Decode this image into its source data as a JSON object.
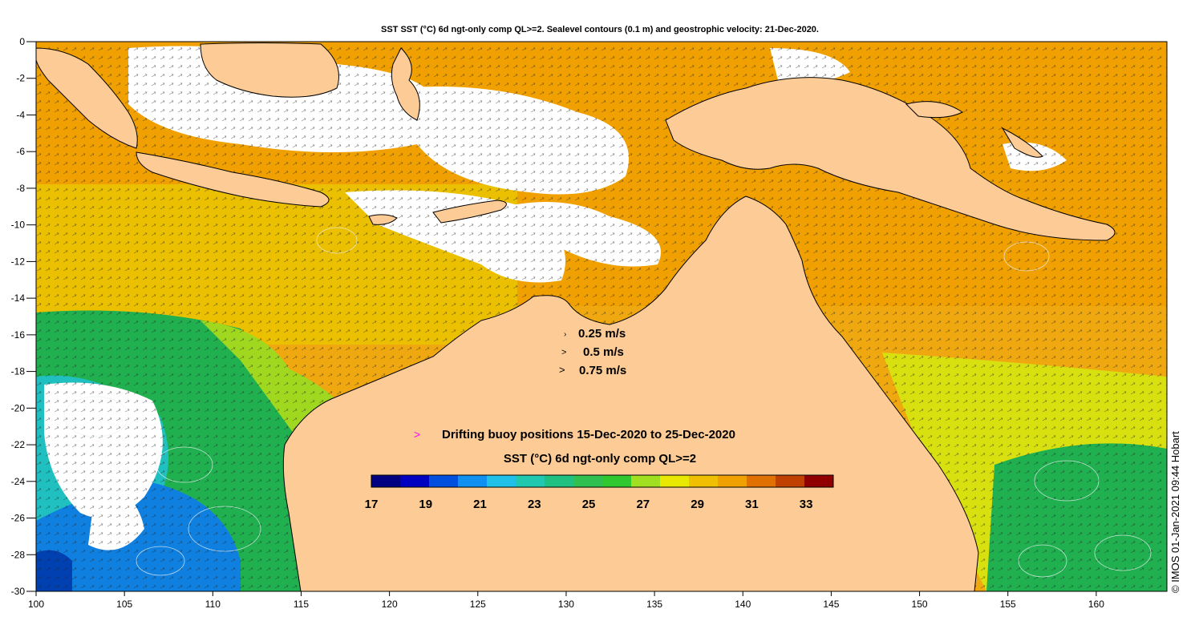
{
  "title": "SST SST (°C) 6d ngt-only comp QL>=2. Sealevel contours (0.1 m) and geostrophic velocity: 21-Dec-2020.",
  "colors": {
    "land": "#fdcb95",
    "cloud": "#ffffff",
    "frame": "#000000",
    "buoy_marker": "#ff00ff",
    "contour": "#e8f0f0"
  },
  "velocity_legend": [
    {
      "label": "0.25 m/s"
    },
    {
      "label": "0.5 m/s"
    },
    {
      "label": "0.75 m/s"
    }
  ],
  "buoy_legend": {
    "symbol": ">",
    "label": "Drifting buoy positions 15-Dec-2020 to 25-Dec-2020"
  },
  "colorbar": {
    "title": "SST (°C) 6d ngt-only comp QL>=2",
    "min": 17,
    "max": 34,
    "tick_labels": [
      "17",
      "19",
      "21",
      "23",
      "25",
      "27",
      "29",
      "31",
      "33"
    ],
    "colors": [
      "#000080",
      "#0000c0",
      "#0050e0",
      "#1090f0",
      "#20c0e8",
      "#20c8b0",
      "#20c080",
      "#30c050",
      "#30c830",
      "#a0e020",
      "#e8e800",
      "#f0c000",
      "#f0a000",
      "#e07000",
      "#c04000",
      "#900000"
    ]
  },
  "x_axis": {
    "range": [
      100,
      164
    ],
    "tick_labels": [
      "100",
      "105",
      "110",
      "115",
      "120",
      "125",
      "130",
      "135",
      "140",
      "145",
      "150",
      "155",
      "160"
    ]
  },
  "y_axis": {
    "range": [
      -30,
      0
    ],
    "tick_labels": [
      "0",
      "-2",
      "-4",
      "-6",
      "-8",
      "-10",
      "-12",
      "-14",
      "-16",
      "-18",
      "-20",
      "-22",
      "-24",
      "-26",
      "-28",
      "-30"
    ]
  },
  "credit": "© IMOS 01-Jan-2021 09:44 Hobart"
}
